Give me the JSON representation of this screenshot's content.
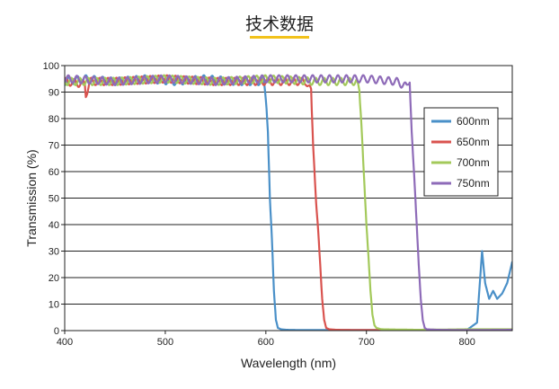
{
  "page": {
    "title": "技术数据"
  },
  "chart_data": {
    "type": "line",
    "title": "",
    "xlabel": "Wavelength (nm)",
    "ylabel": "Transmission (%)",
    "xlim": [
      400,
      845
    ],
    "ylim": [
      0,
      100
    ],
    "xticks": [
      400,
      500,
      600,
      700,
      800
    ],
    "yticks": [
      0,
      10,
      20,
      30,
      40,
      50,
      60,
      70,
      80,
      90,
      100
    ],
    "grid": "horizontal",
    "legend_position": "right",
    "series": [
      {
        "name": "600nm",
        "color": "#4a90c8",
        "x": [
          400,
          420,
          450,
          480,
          510,
          540,
          570,
          598,
          600,
          602,
          604,
          606,
          608,
          610,
          612,
          615,
          620,
          640,
          660,
          680,
          700,
          740,
          780,
          800,
          810,
          815,
          818,
          822,
          826,
          830,
          835,
          840,
          845
        ],
        "y": [
          94,
          95,
          94,
          95,
          94,
          95,
          94,
          94,
          88,
          75,
          50,
          35,
          15,
          4,
          1,
          0.5,
          0.3,
          0.2,
          0.2,
          0.2,
          0.2,
          0.2,
          0.2,
          0.3,
          3,
          30,
          18,
          12,
          15,
          12,
          14,
          18,
          26
        ]
      },
      {
        "name": "650nm",
        "color": "#d9534f",
        "x": [
          400,
          420,
          421,
          425,
          450,
          500,
          550,
          600,
          640,
          645,
          647,
          650,
          652,
          654,
          656,
          658,
          660,
          663,
          670,
          700,
          750,
          800,
          845
        ],
        "y": [
          94,
          93,
          89,
          94,
          94,
          95,
          94,
          94,
          94,
          90,
          70,
          48,
          38,
          25,
          12,
          4,
          1,
          0.5,
          0.3,
          0.2,
          0.2,
          0.2,
          0.2
        ]
      },
      {
        "name": "700nm",
        "color": "#a3c95a",
        "x": [
          400,
          450,
          500,
          550,
          600,
          650,
          690,
          693,
          695,
          698,
          700,
          702,
          704,
          706,
          708,
          710,
          715,
          750,
          800,
          845
        ],
        "y": [
          94,
          94,
          95,
          94,
          95,
          94,
          94,
          90,
          78,
          55,
          40,
          28,
          15,
          6,
          2,
          1,
          0.5,
          0.3,
          0.5,
          0.5
        ]
      },
      {
        "name": "750nm",
        "color": "#8e6bb8",
        "x": [
          400,
          450,
          500,
          550,
          600,
          650,
          700,
          730,
          740,
          743,
          745,
          748,
          750,
          752,
          754,
          756,
          758,
          760,
          770,
          800,
          845
        ],
        "y": [
          95,
          94,
          95,
          94,
          95,
          95,
          95,
          94,
          92,
          95,
          75,
          55,
          40,
          25,
          12,
          4,
          1,
          0.5,
          0.3,
          0.2,
          0.3
        ]
      }
    ]
  }
}
